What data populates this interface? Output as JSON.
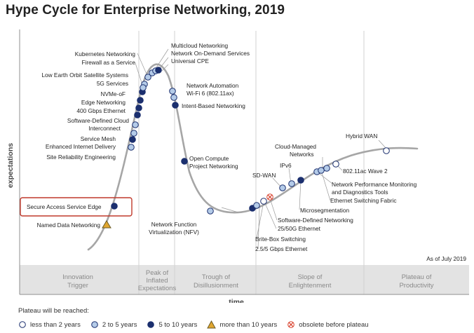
{
  "title": "Hype Cycle for Enterprise Networking, 2019",
  "chart_data": {
    "type": "hype-cycle",
    "title": "Hype Cycle for Enterprise Networking, 2019",
    "ylabel": "expectations",
    "xlabel": "time",
    "as_of": "As of July 2019",
    "phases": [
      "Innovation Trigger",
      "Peak of Inflated Expectations",
      "Trough of Disillusionment",
      "Slope of Enlightenment",
      "Plateau of Productivity"
    ],
    "highlighted": "Secure Access Service Edge",
    "points": [
      {
        "name": "Named Data Networking",
        "phase": "Innovation Trigger",
        "plateau": "more than 10 years"
      },
      {
        "name": "Secure Access Service Edge",
        "phase": "Innovation Trigger",
        "plateau": "5 to 10 years"
      },
      {
        "name": "Site Reliability Engineering",
        "phase": "Peak of Inflated Expectations",
        "plateau": "2 to 5 years"
      },
      {
        "name": "Enhanced Internet Delivery",
        "phase": "Peak of Inflated Expectations",
        "plateau": "5 to 10 years"
      },
      {
        "name": "Service Mesh",
        "phase": "Peak of Inflated Expectations",
        "plateau": "2 to 5 years"
      },
      {
        "name": "Software-Defined Cloud Interconnect",
        "phase": "Peak of Inflated Expectations",
        "plateau": "2 to 5 years"
      },
      {
        "name": "400 Gbps Ethernet",
        "phase": "Peak of Inflated Expectations",
        "plateau": "5 to 10 years"
      },
      {
        "name": "Edge Networking",
        "phase": "Peak of Inflated Expectations",
        "plateau": "5 to 10 years"
      },
      {
        "name": "NVMe-oF",
        "phase": "Peak of Inflated Expectations",
        "plateau": "5 to 10 years"
      },
      {
        "name": "5G Services",
        "phase": "Peak of Inflated Expectations",
        "plateau": "5 to 10 years"
      },
      {
        "name": "Low Earth Orbit Satellite Systems",
        "phase": "Peak of Inflated Expectations",
        "plateau": "2 to 5 years"
      },
      {
        "name": "Firewall as a Service",
        "phase": "Peak of Inflated Expectations",
        "plateau": "2 to 5 years"
      },
      {
        "name": "Kubernetes Networking",
        "phase": "Peak of Inflated Expectations",
        "plateau": "2 to 5 years"
      },
      {
        "name": "Multicloud Networking",
        "phase": "Peak of Inflated Expectations",
        "plateau": "2 to 5 years"
      },
      {
        "name": "Network On-Demand Services",
        "phase": "Peak of Inflated Expectations",
        "plateau": "2 to 5 years"
      },
      {
        "name": "Universal CPE",
        "phase": "Peak of Inflated Expectations",
        "plateau": "5 to 10 years"
      },
      {
        "name": "Network Automation",
        "phase": "Trough of Disillusionment",
        "plateau": "2 to 5 years"
      },
      {
        "name": "Wi-Fi 6 (802.11ax)",
        "phase": "Trough of Disillusionment",
        "plateau": "2 to 5 years"
      },
      {
        "name": "Intent-Based Networking",
        "phase": "Trough of Disillusionment",
        "plateau": "5 to 10 years"
      },
      {
        "name": "Open Compute Project Networking",
        "phase": "Trough of Disillusionment",
        "plateau": "5 to 10 years"
      },
      {
        "name": "Network Function Virtualization (NFV)",
        "phase": "Trough of Disillusionment",
        "plateau": "2 to 5 years"
      },
      {
        "name": "Brite-Box Switching",
        "phase": "Trough of Disillusionment",
        "plateau": "5 to 10 years"
      },
      {
        "name": "2.5/5 Gbps Ethernet",
        "phase": "Trough of Disillusionment",
        "plateau": "2 to 5 years"
      },
      {
        "name": "25/50G Ethernet",
        "phase": "Trough of Disillusionment",
        "plateau": "less than 2 years"
      },
      {
        "name": "Software-Defined Networking",
        "phase": "Trough of Disillusionment",
        "plateau": "obsolete before plateau"
      },
      {
        "name": "SD-WAN",
        "phase": "Slope of Enlightenment",
        "plateau": "2 to 5 years"
      },
      {
        "name": "IPv6",
        "phase": "Slope of Enlightenment",
        "plateau": "2 to 5 years"
      },
      {
        "name": "Microsegmentation",
        "phase": "Slope of Enlightenment",
        "plateau": "5 to 10 years"
      },
      {
        "name": "Cloud-Managed Networks",
        "phase": "Slope of Enlightenment",
        "plateau": "2 to 5 years"
      },
      {
        "name": "Network Performance Monitoring and Diagnostics Tools",
        "phase": "Slope of Enlightenment",
        "plateau": "2 to 5 years"
      },
      {
        "name": "Ethernet Switching Fabric",
        "phase": "Slope of Enlightenment",
        "plateau": "2 to 5 years"
      },
      {
        "name": "802.11ac Wave 2",
        "phase": "Slope of Enlightenment",
        "plateau": "less than 2 years"
      },
      {
        "name": "Hybrid WAN",
        "phase": "Slope of Enlightenment",
        "plateau": "less than 2 years"
      }
    ]
  },
  "labels": {
    "named_data_networking": "Named Data Networking",
    "sase": "Secure Access Service Edge",
    "sre": "Site Reliability Engineering",
    "eid": "Enhanced Internet Delivery",
    "service_mesh": "Service Mesh",
    "sdci_1": "Software-Defined Cloud",
    "sdci_2": "Interconnect",
    "g400": "400 Gbps Ethernet",
    "edge": "Edge Networking",
    "nvme": "NVMe-oF",
    "g5": "5G Services",
    "leo": "Low Earth Orbit Satellite Systems",
    "fwaas": "Firewall as a Service",
    "k8s": "Kubernetes Networking",
    "multicloud": "Multicloud Networking",
    "nods": "Network On-Demand Services",
    "ucpe": "Universal CPE",
    "automation": "Network Automation",
    "wifi6": "Wi-Fi 6 (802.11ax)",
    "ibn": "Intent-Based Networking",
    "ocp_1": "Open Compute",
    "ocp_2": "Project Networking",
    "nfv_1": "Network Function",
    "nfv_2": "Virtualization (NFV)",
    "britebox": "Brite-Box Switching",
    "g25": "2.5/5 Gbps Ethernet",
    "g2550": "25/50G Ethernet",
    "sdn": "Software-Defined Networking",
    "sdwan": "SD-WAN",
    "ipv6": "IPv6",
    "microseg": "Microsegmentation",
    "cmn_1": "Cloud-Managed",
    "cmn_2": "Networks",
    "npmd_1": "Network Performance Monitoring",
    "npmd_2": "and Diagnostics Tools",
    "esf": "Ethernet Switching Fabric",
    "wave2": "802.11ac Wave 2",
    "hybridwan": "Hybrid WAN"
  },
  "phase_labels": {
    "p1a": "Innovation",
    "p1b": "Trigger",
    "p2a": "Peak of",
    "p2b": "Inflated",
    "p2c": "Expectations",
    "p3a": "Trough of",
    "p3b": "Disillusionment",
    "p4a": "Slope of",
    "p4b": "Enlightenment",
    "p5a": "Plateau of",
    "p5b": "Productivity"
  },
  "axes": {
    "y": "expectations",
    "x": "time"
  },
  "as_of": "As of July 2019",
  "legend": {
    "title": "Plateau will be reached:",
    "items": [
      {
        "label": "less than 2 years",
        "icon": "open-circle-icon"
      },
      {
        "label": "2 to 5 years",
        "icon": "light-blue-circle-icon"
      },
      {
        "label": "5 to 10 years",
        "icon": "dark-blue-circle-icon"
      },
      {
        "label": "more than 10 years",
        "icon": "triangle-icon"
      },
      {
        "label": "obsolete before plateau",
        "icon": "crossed-circle-icon"
      }
    ]
  },
  "colors": {
    "curve": "#a6a6a6",
    "dark_blue": "#1b2f6e",
    "light_blue": "#b4cbe8",
    "triangle": "#e0a630",
    "obsolete": "#d8402b",
    "highlight_box": "#c0392b",
    "phase_band": "#e3e3e3"
  }
}
